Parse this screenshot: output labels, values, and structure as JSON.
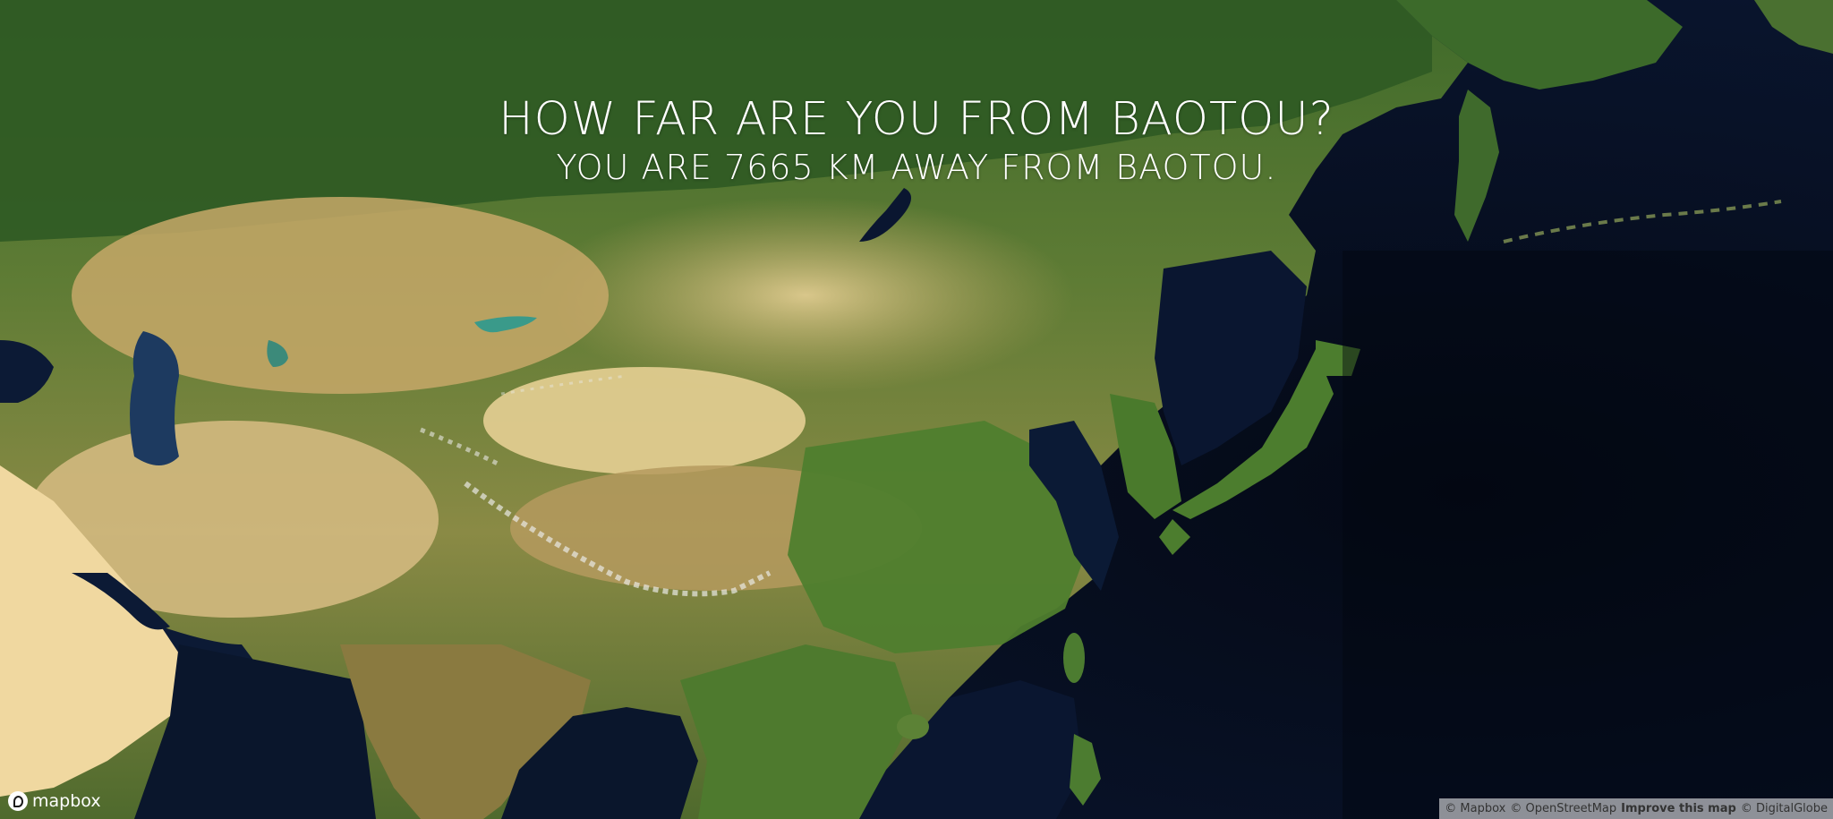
{
  "headline": "HOW FAR ARE YOU FROM BAOTOU?",
  "distance_text": "YOU ARE 7665 KM AWAY FROM BAOTOU.",
  "map": {
    "style": "satellite",
    "region": "East and Central Asia",
    "ocean_color": "#07101f"
  },
  "logo": {
    "label": "mapbox",
    "icon": "mapbox-logo-icon"
  },
  "attribution": {
    "mapbox": "© Mapbox",
    "osm": "© OpenStreetMap",
    "improve": "Improve this map",
    "digitalglobe": "© DigitalGlobe"
  }
}
